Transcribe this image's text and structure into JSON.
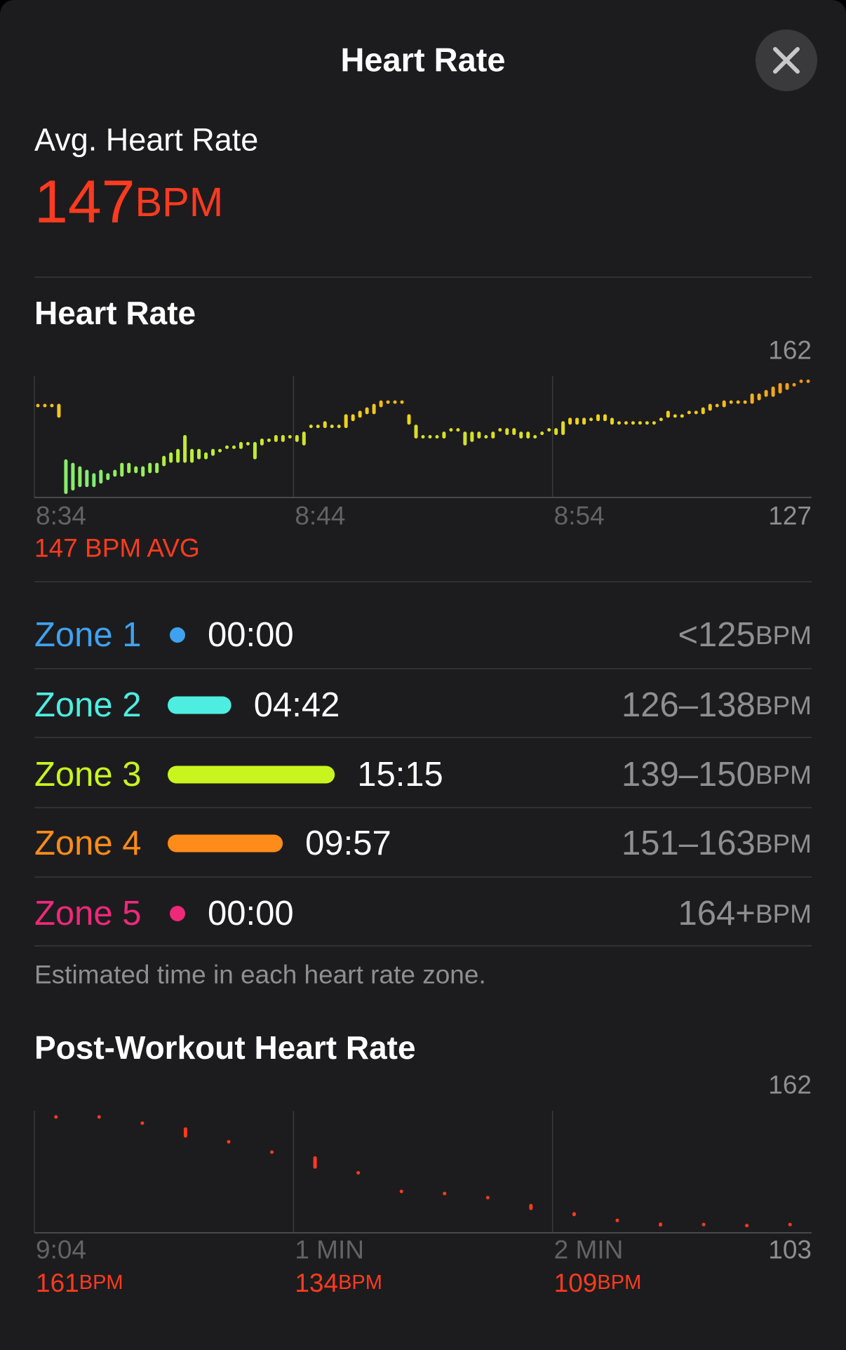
{
  "header": {
    "title": "Heart Rate"
  },
  "unit": "BPM",
  "average": {
    "label": "Avg. Heart Rate",
    "value": 147
  },
  "chart_data": [
    {
      "type": "range_bar",
      "title": "Heart Rate",
      "ylim": [
        127,
        162
      ],
      "yticks": [
        162,
        127
      ],
      "x_labels": [
        "8:34",
        "8:44",
        "8:54"
      ],
      "avg_label": "147 BPM AVG",
      "colors": [
        "#5ee6a0",
        "#b6f03a",
        "#f2d21c",
        "#f58a1f"
      ],
      "values": [
        [
          153,
          154
        ],
        [
          153,
          154
        ],
        [
          153,
          154
        ],
        [
          150,
          154
        ],
        [
          128,
          138
        ],
        [
          129,
          137
        ],
        [
          130,
          136
        ],
        [
          130,
          135
        ],
        [
          130,
          134
        ],
        [
          131,
          135
        ],
        [
          132,
          134
        ],
        [
          133,
          135
        ],
        [
          133,
          137
        ],
        [
          134,
          137
        ],
        [
          134,
          136
        ],
        [
          133,
          136
        ],
        [
          134,
          137
        ],
        [
          134,
          137
        ],
        [
          136,
          139
        ],
        [
          137,
          140
        ],
        [
          137,
          141
        ],
        [
          137,
          145
        ],
        [
          137,
          141
        ],
        [
          138,
          141
        ],
        [
          138,
          140
        ],
        [
          139,
          141
        ],
        [
          140,
          141
        ],
        [
          141,
          142
        ],
        [
          141,
          142
        ],
        [
          141,
          143
        ],
        [
          142,
          143
        ],
        [
          138,
          143
        ],
        [
          142,
          144
        ],
        [
          143,
          144
        ],
        [
          143,
          145
        ],
        [
          143,
          145
        ],
        [
          144,
          145
        ],
        [
          143,
          145
        ],
        [
          142,
          146
        ],
        [
          147,
          148
        ],
        [
          147,
          148
        ],
        [
          147,
          149
        ],
        [
          147,
          148
        ],
        [
          147,
          148
        ],
        [
          147,
          151
        ],
        [
          149,
          151
        ],
        [
          150,
          152
        ],
        [
          151,
          153
        ],
        [
          151,
          154
        ],
        [
          153,
          155
        ],
        [
          154,
          155
        ],
        [
          154,
          155
        ],
        [
          154,
          155
        ],
        [
          148,
          151
        ],
        [
          144,
          148
        ],
        [
          144,
          145
        ],
        [
          144,
          145
        ],
        [
          144,
          145
        ],
        [
          144,
          146
        ],
        [
          146,
          147
        ],
        [
          146,
          147
        ],
        [
          142,
          146
        ],
        [
          143,
          146
        ],
        [
          144,
          146
        ],
        [
          144,
          145
        ],
        [
          144,
          146
        ],
        [
          146,
          147
        ],
        [
          145,
          147
        ],
        [
          145,
          147
        ],
        [
          144,
          146
        ],
        [
          144,
          146
        ],
        [
          144,
          145
        ],
        [
          145,
          146
        ],
        [
          146,
          147
        ],
        [
          145,
          147
        ],
        [
          145,
          149
        ],
        [
          148,
          150
        ],
        [
          148,
          150
        ],
        [
          148,
          150
        ],
        [
          149,
          150
        ],
        [
          149,
          151
        ],
        [
          149,
          151
        ],
        [
          148,
          150
        ],
        [
          148,
          149
        ],
        [
          148,
          149
        ],
        [
          148,
          149
        ],
        [
          148,
          149
        ],
        [
          148,
          149
        ],
        [
          148,
          149
        ],
        [
          149,
          150
        ],
        [
          150,
          152
        ],
        [
          150,
          151
        ],
        [
          150,
          151
        ],
        [
          151,
          152
        ],
        [
          151,
          152
        ],
        [
          151,
          153
        ],
        [
          152,
          154
        ],
        [
          153,
          154
        ],
        [
          153,
          155
        ],
        [
          154,
          155
        ],
        [
          154,
          155
        ],
        [
          154,
          155
        ],
        [
          154,
          157
        ],
        [
          155,
          157
        ],
        [
          156,
          158
        ],
        [
          156,
          159
        ],
        [
          157,
          160
        ],
        [
          158,
          160
        ],
        [
          159,
          160
        ],
        [
          160,
          161
        ],
        [
          160,
          161
        ]
      ]
    },
    {
      "type": "range_dot",
      "title": "Post-Workout Heart Rate",
      "ylim": [
        103,
        162
      ],
      "yticks": [
        162,
        103
      ],
      "color": "#ff3b1f",
      "markers": [
        {
          "label": "9:04",
          "value": 161
        },
        {
          "label": "1 MIN",
          "value": 134
        },
        {
          "label": "2 MIN",
          "value": 109
        }
      ],
      "values": [
        [
          159,
          159
        ],
        [
          159,
          159
        ],
        [
          156,
          156
        ],
        [
          149,
          154
        ],
        [
          147,
          147
        ],
        [
          142,
          142
        ],
        [
          134,
          140
        ],
        [
          132,
          132
        ],
        [
          123,
          123
        ],
        [
          122,
          122
        ],
        [
          120,
          120
        ],
        [
          114,
          117
        ],
        [
          111,
          113
        ],
        [
          109,
          109
        ],
        [
          106,
          108
        ],
        [
          107,
          107
        ],
        [
          106,
          107
        ],
        [
          107,
          107
        ]
      ]
    }
  ],
  "zones": [
    {
      "name": "Zone 1",
      "time": "00:00",
      "range": "<125",
      "color": "#3fa2f0"
    },
    {
      "name": "Zone 2",
      "time": "04:42",
      "range": "126–138",
      "color": "#4deee0"
    },
    {
      "name": "Zone 3",
      "time": "15:15",
      "range": "139–150",
      "color": "#c8f51e"
    },
    {
      "name": "Zone 4",
      "time": "09:57",
      "range": "151–163",
      "color": "#ff8c1a"
    },
    {
      "name": "Zone 5",
      "time": "00:00",
      "range": "164+",
      "color": "#f0287a"
    }
  ],
  "note": "Estimated time in each heart rate zone."
}
